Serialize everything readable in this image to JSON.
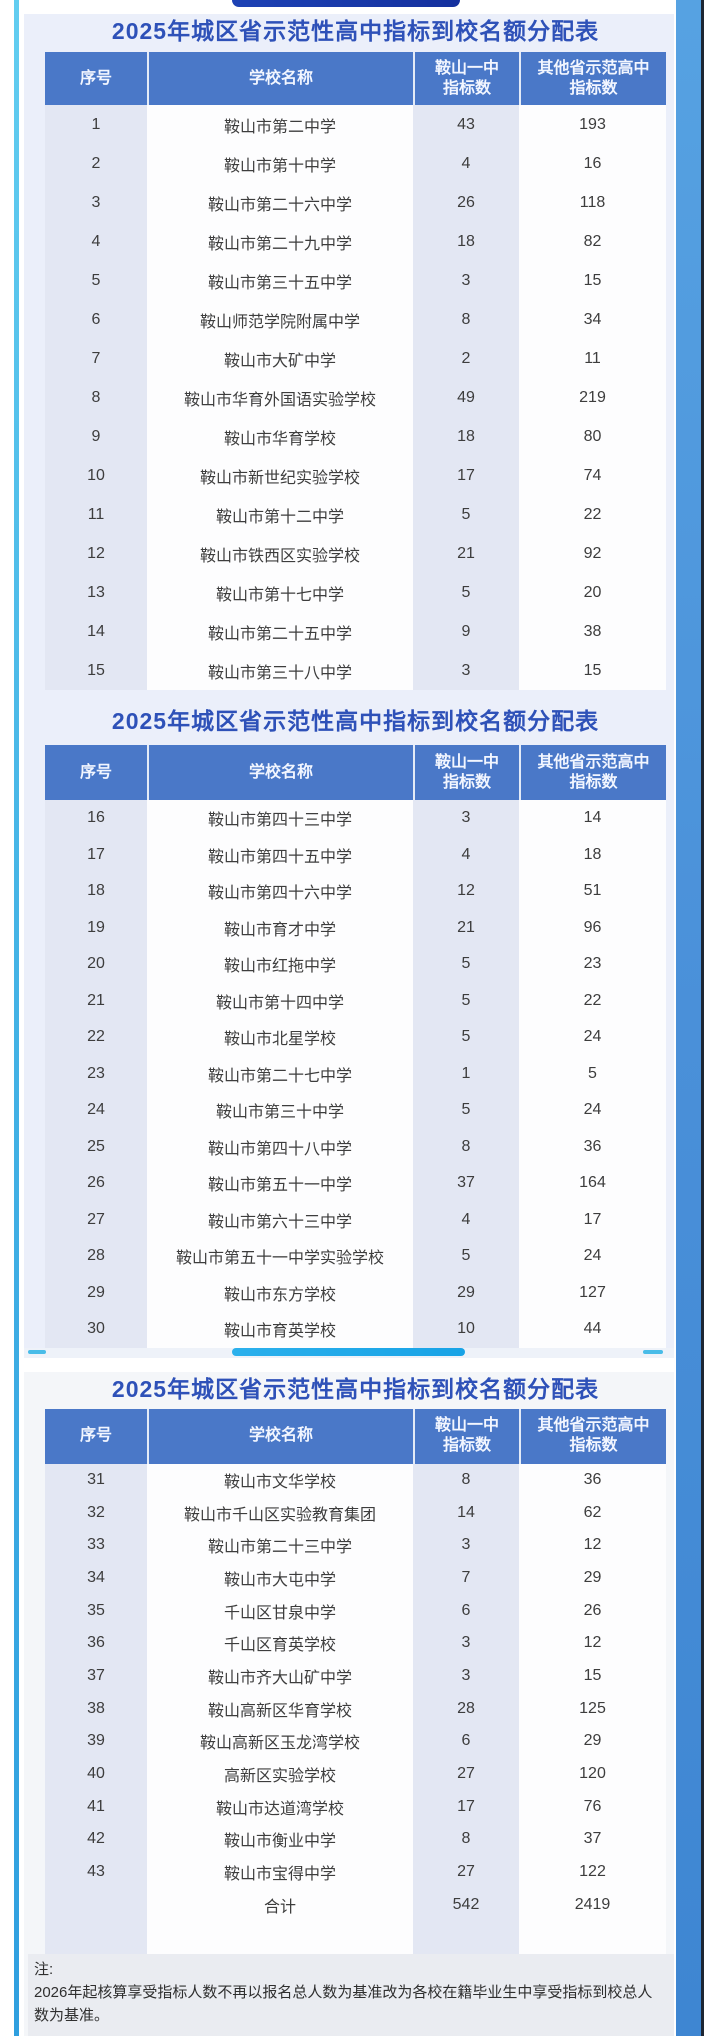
{
  "tables": [
    {
      "title": "2025年城区省示范性高中指标到校名额分配表",
      "headers": [
        "序号",
        "学校名称",
        "鞍山一中\n指标数",
        "其他省示范高中\n指标数"
      ],
      "rows": [
        [
          "1",
          "鞍山市第二中学",
          "43",
          "193"
        ],
        [
          "2",
          "鞍山市第十中学",
          "4",
          "16"
        ],
        [
          "3",
          "鞍山市第二十六中学",
          "26",
          "118"
        ],
        [
          "4",
          "鞍山市第二十九中学",
          "18",
          "82"
        ],
        [
          "5",
          "鞍山市第三十五中学",
          "3",
          "15"
        ],
        [
          "6",
          "鞍山师范学院附属中学",
          "8",
          "34"
        ],
        [
          "7",
          "鞍山市大矿中学",
          "2",
          "11"
        ],
        [
          "8",
          "鞍山市华育外国语实验学校",
          "49",
          "219"
        ],
        [
          "9",
          "鞍山市华育学校",
          "18",
          "80"
        ],
        [
          "10",
          "鞍山市新世纪实验学校",
          "17",
          "74"
        ],
        [
          "11",
          "鞍山市第十二中学",
          "5",
          "22"
        ],
        [
          "12",
          "鞍山市铁西区实验学校",
          "21",
          "92"
        ],
        [
          "13",
          "鞍山市第十七中学",
          "5",
          "20"
        ],
        [
          "14",
          "鞍山市第二十五中学",
          "9",
          "38"
        ],
        [
          "15",
          "鞍山市第三十八中学",
          "3",
          "15"
        ]
      ],
      "trailing_blank_row": false
    },
    {
      "title": "2025年城区省示范性高中指标到校名额分配表",
      "headers": [
        "序号",
        "学校名称",
        "鞍山一中\n指标数",
        "其他省示范高中\n指标数"
      ],
      "rows": [
        [
          "16",
          "鞍山市第四十三中学",
          "3",
          "14"
        ],
        [
          "17",
          "鞍山市第四十五中学",
          "4",
          "18"
        ],
        [
          "18",
          "鞍山市第四十六中学",
          "12",
          "51"
        ],
        [
          "19",
          "鞍山市育才中学",
          "21",
          "96"
        ],
        [
          "20",
          "鞍山市红拖中学",
          "5",
          "23"
        ],
        [
          "21",
          "鞍山市第十四中学",
          "5",
          "22"
        ],
        [
          "22",
          "鞍山市北星学校",
          "5",
          "24"
        ],
        [
          "23",
          "鞍山市第二十七中学",
          "1",
          "5"
        ],
        [
          "24",
          "鞍山市第三十中学",
          "5",
          "24"
        ],
        [
          "25",
          "鞍山市第四十八中学",
          "8",
          "36"
        ],
        [
          "26",
          "鞍山市第五十一中学",
          "37",
          "164"
        ],
        [
          "27",
          "鞍山市第六十三中学",
          "4",
          "17"
        ],
        [
          "28",
          "鞍山市第五十一中学实验学校",
          "5",
          "24"
        ],
        [
          "29",
          "鞍山市东方学校",
          "29",
          "127"
        ],
        [
          "30",
          "鞍山市育英学校",
          "10",
          "44"
        ]
      ],
      "trailing_blank_row": false
    },
    {
      "title": "2025年城区省示范性高中指标到校名额分配表",
      "headers": [
        "序号",
        "学校名称",
        "鞍山一中\n指标数",
        "其他省示范高中\n指标数"
      ],
      "rows": [
        [
          "31",
          "鞍山市文华学校",
          "8",
          "36"
        ],
        [
          "32",
          "鞍山市千山区实验教育集团",
          "14",
          "62"
        ],
        [
          "33",
          "鞍山市第二十三中学",
          "3",
          "12"
        ],
        [
          "34",
          "鞍山市大屯中学",
          "7",
          "29"
        ],
        [
          "35",
          "千山区甘泉中学",
          "6",
          "26"
        ],
        [
          "36",
          "千山区育英学校",
          "3",
          "12"
        ],
        [
          "37",
          "鞍山市齐大山矿中学",
          "3",
          "15"
        ],
        [
          "38",
          "鞍山高新区华育学校",
          "28",
          "125"
        ],
        [
          "39",
          "鞍山高新区玉龙湾学校",
          "6",
          "29"
        ],
        [
          "40",
          "高新区实验学校",
          "27",
          "120"
        ],
        [
          "41",
          "鞍山市达道湾学校",
          "17",
          "76"
        ],
        [
          "42",
          "鞍山市衡业中学",
          "8",
          "37"
        ],
        [
          "43",
          "鞍山市宝得中学",
          "27",
          "122"
        ],
        [
          "",
          "合计",
          "542",
          "2419"
        ]
      ],
      "trailing_blank_row": true
    }
  ],
  "note": {
    "label": "注:",
    "text": "2026年起核算享受指标人数不再以报名总人数为基准改为各校在籍毕业生中享受指标到校总人数为基准。"
  },
  "colors": {
    "header_blue": "#4a78c8",
    "title_blue": "#2e51b8",
    "cell_lavender": "#e3e7f3",
    "cell_white": "#fdfdfe",
    "upper_background": "#ebeffa",
    "lower_background": "#f4f6f9",
    "divider_cyan": "#18a3e6",
    "top_pill_navy": "#14309e",
    "edge_cyan": "#45b4e6",
    "edge_blue": "#4a90d9"
  }
}
